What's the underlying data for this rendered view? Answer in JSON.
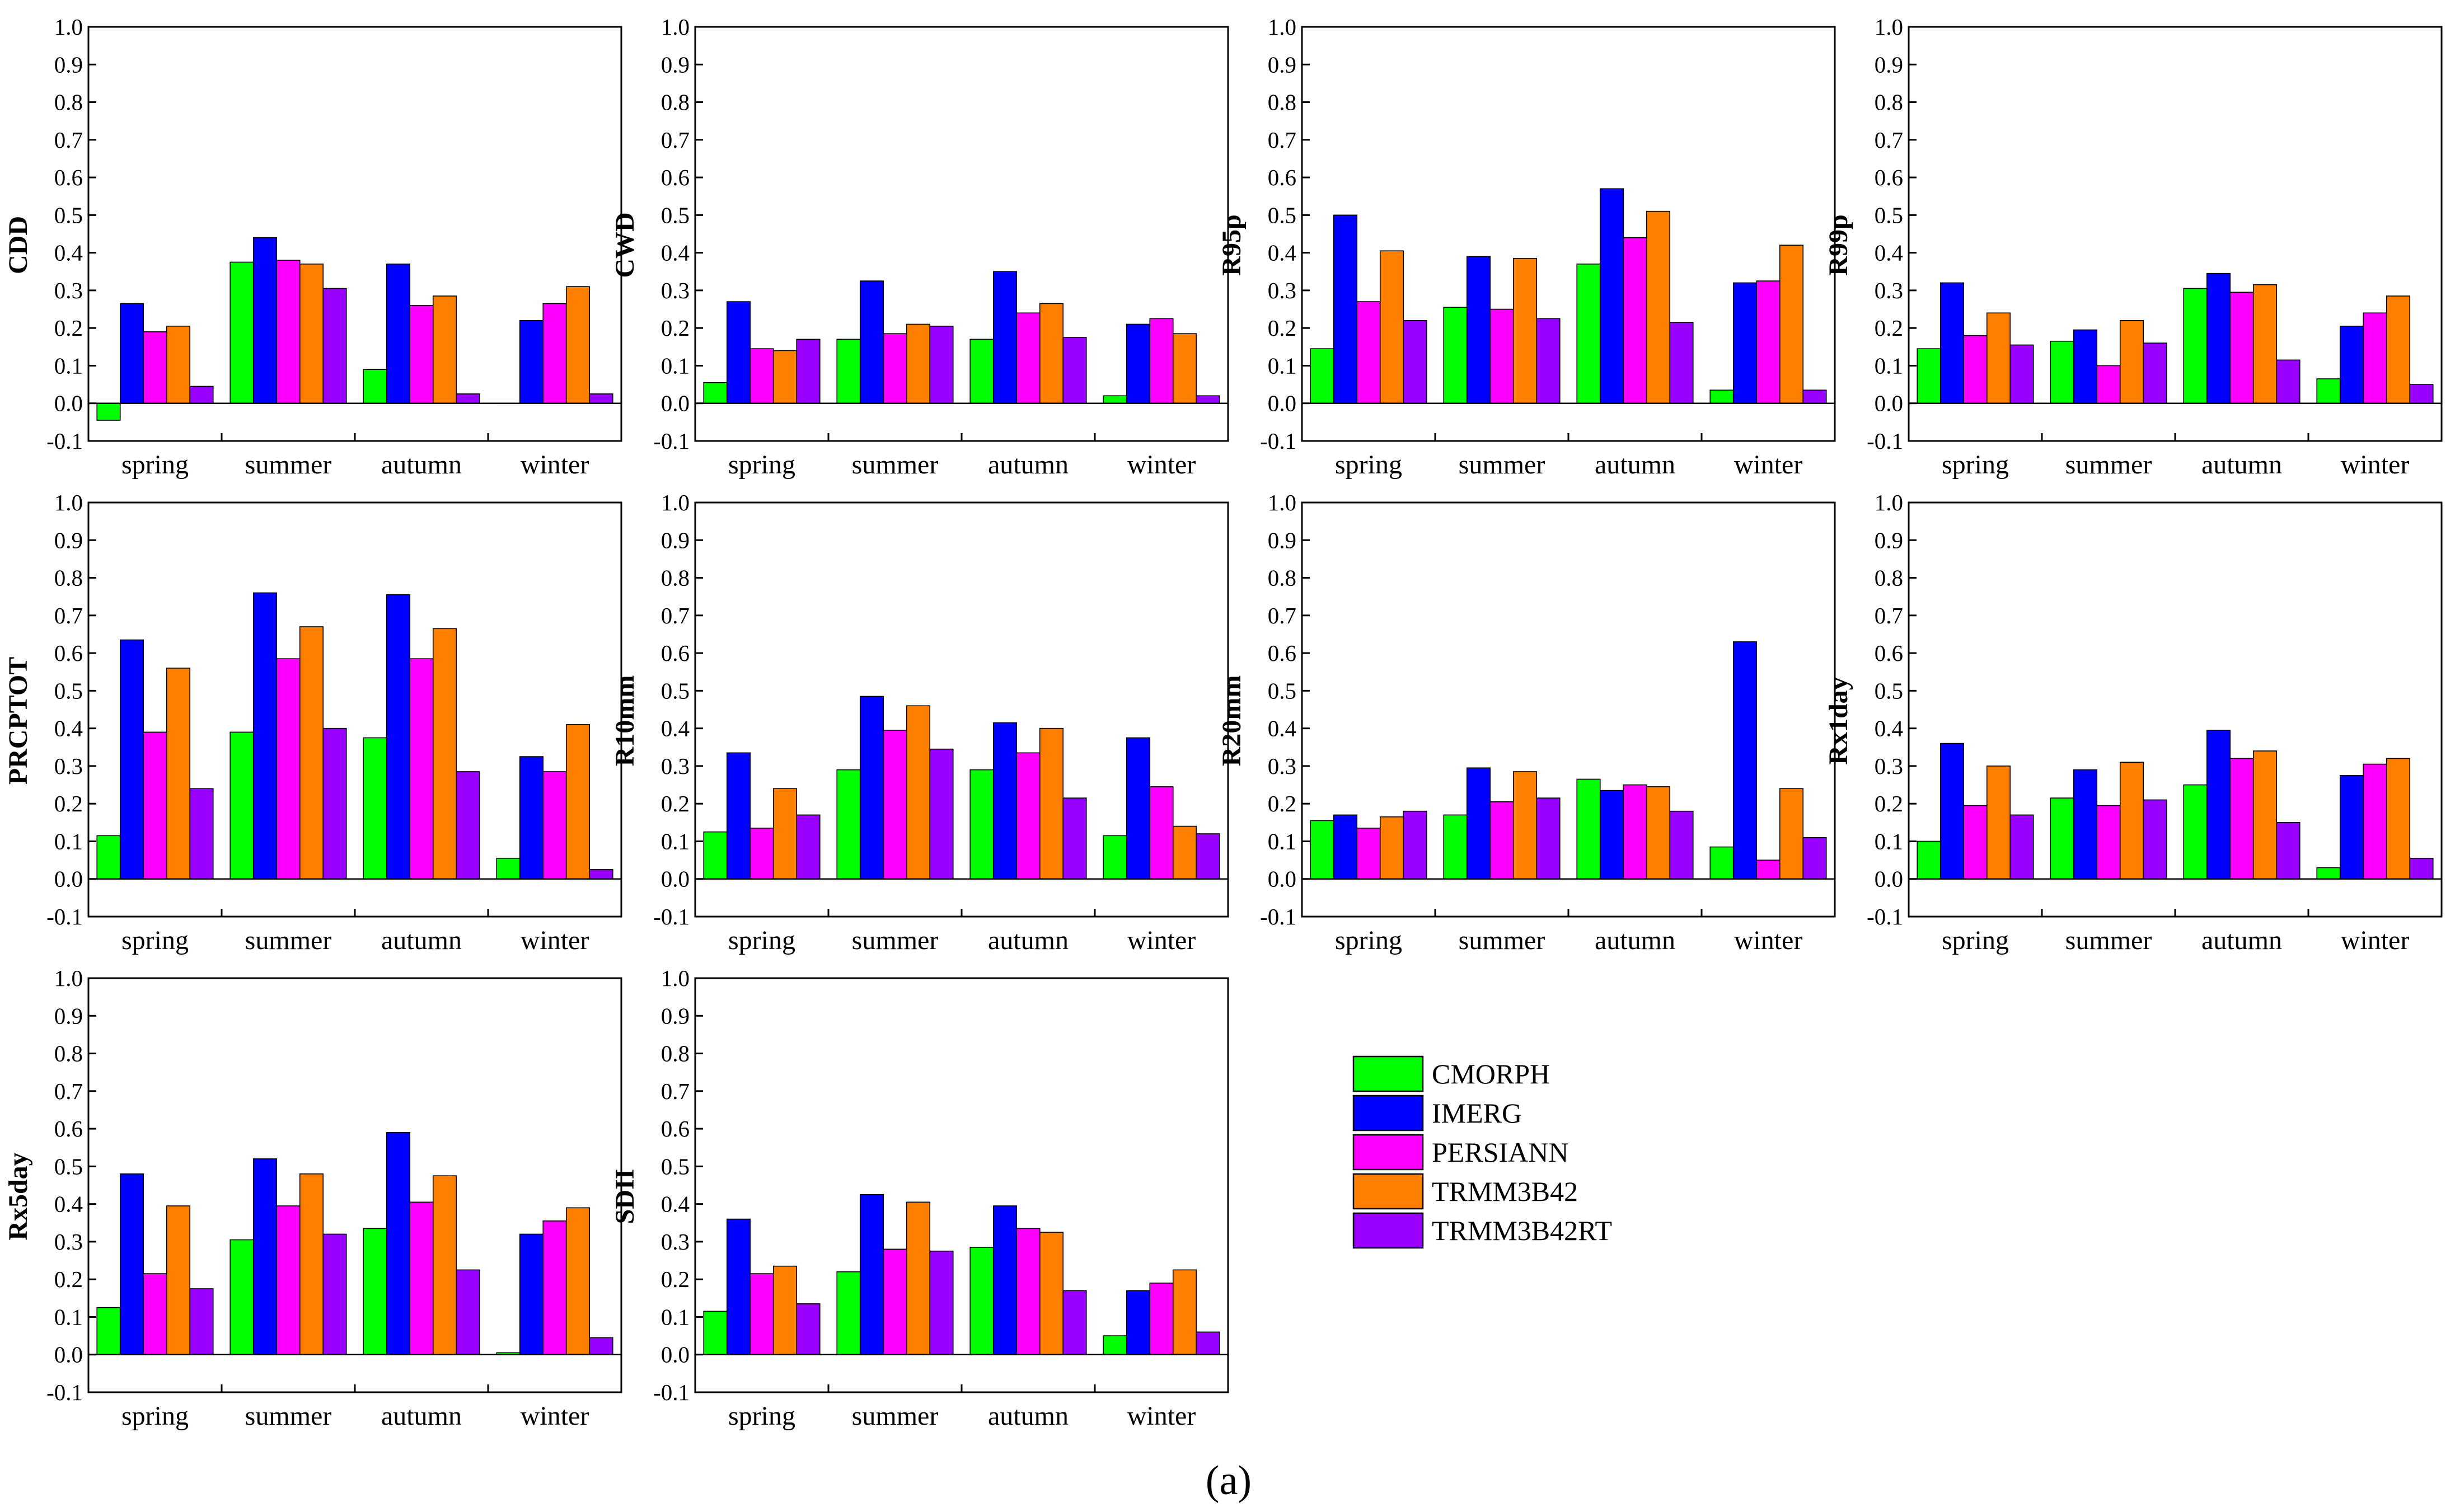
{
  "caption": "(a)",
  "colors": {
    "CMORPH": "#00ff00",
    "IMERG": "#0000ff",
    "PERSIANN": "#ff00ff",
    "TRMM3B42": "#ff8000",
    "TRMM3B42RT": "#9900ff"
  },
  "legend": [
    "CMORPH",
    "IMERG",
    "PERSIANN",
    "TRMM3B42",
    "TRMM3B42RT"
  ],
  "yticks": [
    "-0.1",
    "0.0",
    "0.1",
    "0.2",
    "0.3",
    "0.4",
    "0.5",
    "0.6",
    "0.7",
    "0.8",
    "0.9",
    "1.0"
  ],
  "chart_data": [
    {
      "type": "bar",
      "title": "",
      "ylabel": "CDD",
      "xlabel": "",
      "ylim": [
        -0.1,
        1.0
      ],
      "grid": false,
      "categories": [
        "spring",
        "summer",
        "autumn",
        "winter"
      ],
      "series": [
        {
          "name": "CMORPH",
          "values": [
            -0.045,
            0.375,
            0.09,
            0.0
          ]
        },
        {
          "name": "IMERG",
          "values": [
            0.265,
            0.44,
            0.37,
            0.22
          ]
        },
        {
          "name": "PERSIANN",
          "values": [
            0.19,
            0.38,
            0.26,
            0.265
          ]
        },
        {
          "name": "TRMM3B42",
          "values": [
            0.205,
            0.37,
            0.285,
            0.31
          ]
        },
        {
          "name": "TRMM3B42RT",
          "values": [
            0.045,
            0.305,
            0.025,
            0.025
          ]
        }
      ]
    },
    {
      "type": "bar",
      "title": "",
      "ylabel": "CWD",
      "xlabel": "",
      "ylim": [
        -0.1,
        1.0
      ],
      "grid": false,
      "categories": [
        "spring",
        "summer",
        "autumn",
        "winter"
      ],
      "series": [
        {
          "name": "CMORPH",
          "values": [
            0.055,
            0.17,
            0.17,
            0.02
          ]
        },
        {
          "name": "IMERG",
          "values": [
            0.27,
            0.325,
            0.35,
            0.21
          ]
        },
        {
          "name": "PERSIANN",
          "values": [
            0.145,
            0.185,
            0.24,
            0.225
          ]
        },
        {
          "name": "TRMM3B42",
          "values": [
            0.14,
            0.21,
            0.265,
            0.185
          ]
        },
        {
          "name": "TRMM3B42RT",
          "values": [
            0.17,
            0.205,
            0.175,
            0.02
          ]
        }
      ]
    },
    {
      "type": "bar",
      "title": "",
      "ylabel": "R95p",
      "xlabel": "",
      "ylim": [
        -0.1,
        1.0
      ],
      "grid": false,
      "categories": [
        "spring",
        "summer",
        "autumn",
        "winter"
      ],
      "series": [
        {
          "name": "CMORPH",
          "values": [
            0.145,
            0.255,
            0.37,
            0.035
          ]
        },
        {
          "name": "IMERG",
          "values": [
            0.5,
            0.39,
            0.57,
            0.32
          ]
        },
        {
          "name": "PERSIANN",
          "values": [
            0.27,
            0.25,
            0.44,
            0.325
          ]
        },
        {
          "name": "TRMM3B42",
          "values": [
            0.405,
            0.385,
            0.51,
            0.42
          ]
        },
        {
          "name": "TRMM3B42RT",
          "values": [
            0.22,
            0.225,
            0.215,
            0.035
          ]
        }
      ]
    },
    {
      "type": "bar",
      "title": "",
      "ylabel": "R99p",
      "xlabel": "",
      "ylim": [
        -0.1,
        1.0
      ],
      "grid": false,
      "categories": [
        "spring",
        "summer",
        "autumn",
        "winter"
      ],
      "series": [
        {
          "name": "CMORPH",
          "values": [
            0.145,
            0.165,
            0.305,
            0.065
          ]
        },
        {
          "name": "IMERG",
          "values": [
            0.32,
            0.195,
            0.345,
            0.205
          ]
        },
        {
          "name": "PERSIANN",
          "values": [
            0.18,
            0.1,
            0.295,
            0.24
          ]
        },
        {
          "name": "TRMM3B42",
          "values": [
            0.24,
            0.22,
            0.315,
            0.285
          ]
        },
        {
          "name": "TRMM3B42RT",
          "values": [
            0.155,
            0.16,
            0.115,
            0.05
          ]
        }
      ]
    },
    {
      "type": "bar",
      "title": "",
      "ylabel": "PRCPTOT",
      "xlabel": "",
      "ylim": [
        -0.1,
        1.0
      ],
      "grid": false,
      "categories": [
        "spring",
        "summer",
        "autumn",
        "winter"
      ],
      "series": [
        {
          "name": "CMORPH",
          "values": [
            0.115,
            0.39,
            0.375,
            0.055
          ]
        },
        {
          "name": "IMERG",
          "values": [
            0.635,
            0.76,
            0.755,
            0.325
          ]
        },
        {
          "name": "PERSIANN",
          "values": [
            0.39,
            0.585,
            0.585,
            0.285
          ]
        },
        {
          "name": "TRMM3B42",
          "values": [
            0.56,
            0.67,
            0.665,
            0.41
          ]
        },
        {
          "name": "TRMM3B42RT",
          "values": [
            0.24,
            0.4,
            0.285,
            0.025
          ]
        }
      ]
    },
    {
      "type": "bar",
      "title": "",
      "ylabel": "R10mm",
      "xlabel": "",
      "ylim": [
        -0.1,
        1.0
      ],
      "grid": false,
      "categories": [
        "spring",
        "summer",
        "autumn",
        "winter"
      ],
      "series": [
        {
          "name": "CMORPH",
          "values": [
            0.125,
            0.29,
            0.29,
            0.115
          ]
        },
        {
          "name": "IMERG",
          "values": [
            0.335,
            0.485,
            0.415,
            0.375
          ]
        },
        {
          "name": "PERSIANN",
          "values": [
            0.135,
            0.395,
            0.335,
            0.245
          ]
        },
        {
          "name": "TRMM3B42",
          "values": [
            0.24,
            0.46,
            0.4,
            0.14
          ]
        },
        {
          "name": "TRMM3B42RT",
          "values": [
            0.17,
            0.345,
            0.215,
            0.12
          ]
        }
      ]
    },
    {
      "type": "bar",
      "title": "",
      "ylabel": "R20mm",
      "xlabel": "",
      "ylim": [
        -0.1,
        1.0
      ],
      "grid": false,
      "categories": [
        "spring",
        "summer",
        "autumn",
        "winter"
      ],
      "series": [
        {
          "name": "CMORPH",
          "values": [
            0.155,
            0.17,
            0.265,
            0.085
          ]
        },
        {
          "name": "IMERG",
          "values": [
            0.17,
            0.295,
            0.235,
            0.63
          ]
        },
        {
          "name": "PERSIANN",
          "values": [
            0.135,
            0.205,
            0.25,
            0.05
          ]
        },
        {
          "name": "TRMM3B42",
          "values": [
            0.165,
            0.285,
            0.245,
            0.24
          ]
        },
        {
          "name": "TRMM3B42RT",
          "values": [
            0.18,
            0.215,
            0.18,
            0.11
          ]
        }
      ]
    },
    {
      "type": "bar",
      "title": "",
      "ylabel": "Rx1day",
      "xlabel": "",
      "ylim": [
        -0.1,
        1.0
      ],
      "grid": false,
      "categories": [
        "spring",
        "summer",
        "autumn",
        "winter"
      ],
      "series": [
        {
          "name": "CMORPH",
          "values": [
            0.1,
            0.215,
            0.25,
            0.03
          ]
        },
        {
          "name": "IMERG",
          "values": [
            0.36,
            0.29,
            0.395,
            0.275
          ]
        },
        {
          "name": "PERSIANN",
          "values": [
            0.195,
            0.195,
            0.32,
            0.305
          ]
        },
        {
          "name": "TRMM3B42",
          "values": [
            0.3,
            0.31,
            0.34,
            0.32
          ]
        },
        {
          "name": "TRMM3B42RT",
          "values": [
            0.17,
            0.21,
            0.15,
            0.055
          ]
        }
      ]
    },
    {
      "type": "bar",
      "title": "",
      "ylabel": "Rx5day",
      "xlabel": "",
      "ylim": [
        -0.1,
        1.0
      ],
      "grid": false,
      "categories": [
        "spring",
        "summer",
        "autumn",
        "winter"
      ],
      "series": [
        {
          "name": "CMORPH",
          "values": [
            0.125,
            0.305,
            0.335,
            0.005
          ]
        },
        {
          "name": "IMERG",
          "values": [
            0.48,
            0.52,
            0.59,
            0.32
          ]
        },
        {
          "name": "PERSIANN",
          "values": [
            0.215,
            0.395,
            0.405,
            0.355
          ]
        },
        {
          "name": "TRMM3B42",
          "values": [
            0.395,
            0.48,
            0.475,
            0.39
          ]
        },
        {
          "name": "TRMM3B42RT",
          "values": [
            0.175,
            0.32,
            0.225,
            0.045
          ]
        }
      ]
    },
    {
      "type": "bar",
      "title": "",
      "ylabel": "SDII",
      "xlabel": "",
      "ylim": [
        -0.1,
        1.0
      ],
      "grid": false,
      "categories": [
        "spring",
        "summer",
        "autumn",
        "winter"
      ],
      "series": [
        {
          "name": "CMORPH",
          "values": [
            0.115,
            0.22,
            0.285,
            0.05
          ]
        },
        {
          "name": "IMERG",
          "values": [
            0.36,
            0.425,
            0.395,
            0.17
          ]
        },
        {
          "name": "PERSIANN",
          "values": [
            0.215,
            0.28,
            0.335,
            0.19
          ]
        },
        {
          "name": "TRMM3B42",
          "values": [
            0.235,
            0.405,
            0.325,
            0.225
          ]
        },
        {
          "name": "TRMM3B42RT",
          "values": [
            0.135,
            0.275,
            0.17,
            0.06
          ]
        }
      ]
    }
  ]
}
